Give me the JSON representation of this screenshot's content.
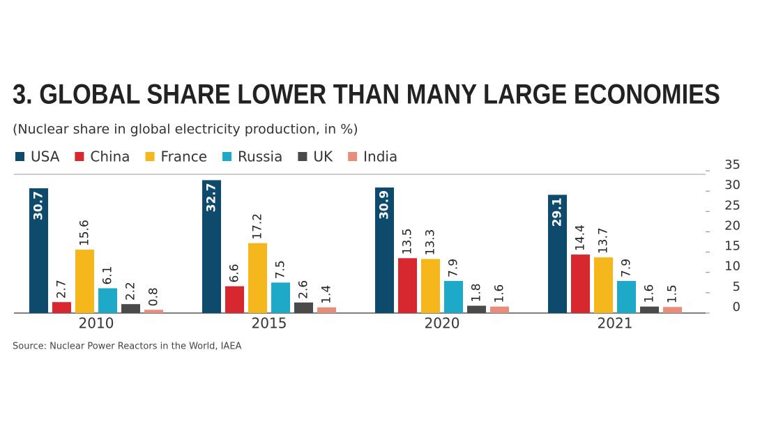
{
  "chart_data": {
    "type": "bar",
    "title": "3. GLOBAL SHARE LOWER THAN MANY LARGE ECONOMIES",
    "subtitle": "(Nuclear share in global electricity production, in %)",
    "source": "Source: Nuclear Power Reactors in the World, IAEA",
    "categories": [
      "2010",
      "2015",
      "2020",
      "2021"
    ],
    "series": [
      {
        "name": "USA",
        "color": "#0e4a6b",
        "values": [
          30.7,
          32.7,
          30.9,
          29.1
        ]
      },
      {
        "name": "China",
        "color": "#d8282f",
        "values": [
          2.7,
          6.6,
          13.5,
          14.4
        ]
      },
      {
        "name": "France",
        "color": "#f5b71c",
        "values": [
          15.6,
          17.2,
          13.3,
          13.7
        ]
      },
      {
        "name": "Russia",
        "color": "#1fa9c9",
        "values": [
          6.1,
          7.5,
          7.9,
          7.9
        ]
      },
      {
        "name": "UK",
        "color": "#4a4a4a",
        "values": [
          2.2,
          2.6,
          1.8,
          1.6
        ]
      },
      {
        "name": "India",
        "color": "#e88c7c",
        "values": [
          0.8,
          1.4,
          1.6,
          1.5
        ]
      }
    ],
    "ylim": [
      0,
      35
    ],
    "yticks": [
      0,
      5,
      10,
      15,
      20,
      25,
      30,
      35
    ]
  }
}
